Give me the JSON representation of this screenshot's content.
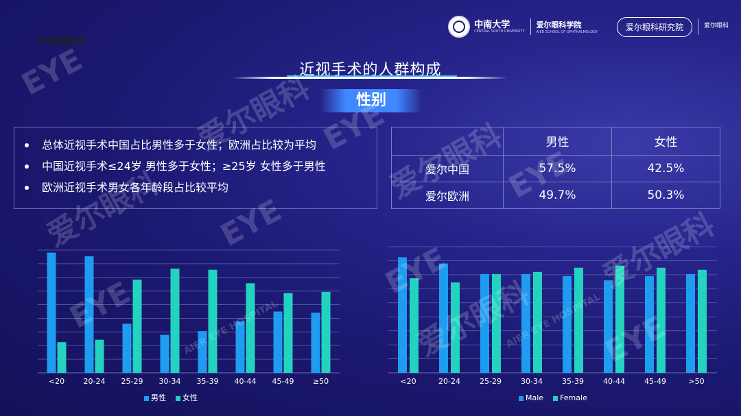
{
  "watermark_text": "作者和账号",
  "header": {
    "university_name": "中南大学",
    "university_sub": "CENTRAL SOUTH UNIVERSITY",
    "school_name": "爱尔眼科学院",
    "school_sub": "AIER SCHOOL OF OPHTHALMOLOGY",
    "research_badge": "爱尔眼科研究院",
    "small_logo": "爱尔眼科"
  },
  "title": "近视手术的人群构成",
  "section_banner": "性别",
  "bullets": [
    "总体近视手术中国占比男性多于女性；欧洲占比较为平均",
    "中国近视手术≤24岁 男性多于女性；≥25岁 女性多于男性",
    "欧洲近视手术男女各年龄段占比较平均"
  ],
  "table": {
    "headers": [
      "",
      "男性",
      "女性"
    ],
    "rows": [
      [
        "爱尔中国",
        "57.5%",
        "42.5%"
      ],
      [
        "爱尔欧洲",
        "49.7%",
        "50.3%"
      ]
    ]
  },
  "colors": {
    "male": "#1e9cf0",
    "female": "#23d3c0",
    "gridline": "#5a60a8"
  },
  "watermarks": [
    "EYE",
    "爱尔眼科",
    "AIER EYE HOSPITAL"
  ],
  "chart_data": [
    {
      "type": "bar",
      "categories": [
        "<20",
        "20-24",
        "25-29",
        "30-34",
        "35-39",
        "40-44",
        "45-49",
        "≥50"
      ],
      "series": [
        {
          "name": "男性",
          "values": [
            0.98,
            0.95,
            0.4,
            0.31,
            0.34,
            0.42,
            0.5,
            0.49
          ]
        },
        {
          "name": "女性",
          "values": [
            0.25,
            0.27,
            0.76,
            0.85,
            0.84,
            0.73,
            0.65,
            0.66
          ]
        }
      ],
      "ylim": [
        0,
        1.0
      ],
      "grid": true,
      "legend": "bottom"
    },
    {
      "type": "bar",
      "categories": [
        "<20",
        "20-24",
        "25-29",
        "30-34",
        "35-39",
        "40-44",
        "45-49",
        ">50"
      ],
      "series": [
        {
          "name": "Male",
          "values": [
            0.55,
            0.52,
            0.47,
            0.47,
            0.46,
            0.44,
            0.46,
            0.47
          ]
        },
        {
          "name": "Female",
          "values": [
            0.45,
            0.43,
            0.47,
            0.48,
            0.5,
            0.51,
            0.5,
            0.49
          ]
        }
      ],
      "ylim": [
        0,
        0.6
      ],
      "grid": true,
      "legend": "bottom"
    }
  ]
}
